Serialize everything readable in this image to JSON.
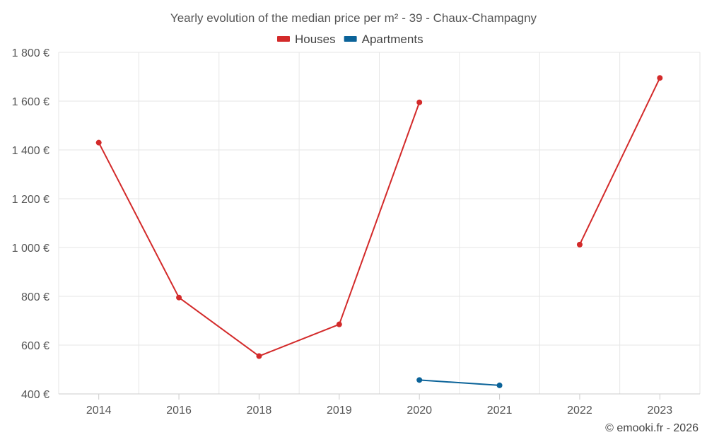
{
  "chart_data": {
    "type": "line",
    "title": "Yearly evolution of the median price per m² - 39 - Chaux-Champagny",
    "categories": [
      "2014",
      "2016",
      "2018",
      "2019",
      "2020",
      "2021",
      "2022",
      "2023"
    ],
    "series": [
      {
        "name": "Houses",
        "color": "#d32a2a",
        "values": [
          1430,
          795,
          555,
          685,
          1595,
          null,
          1012,
          1695
        ]
      },
      {
        "name": "Apartments",
        "color": "#0b6399",
        "values": [
          null,
          null,
          null,
          null,
          457,
          435,
          null,
          null
        ]
      }
    ],
    "ylim": [
      400,
      1800
    ],
    "yticks": [
      400,
      600,
      800,
      1000,
      1200,
      1400,
      1600,
      1800
    ],
    "ytick_labels": [
      "400 €",
      "600 €",
      "800 €",
      "1 000 €",
      "1 200 €",
      "1 400 €",
      "1 600 €",
      "1 800 €"
    ],
    "xlabel": "",
    "ylabel": "",
    "grid": true,
    "legend_position": "top-center"
  },
  "credit": "© emooki.fr - 2026"
}
